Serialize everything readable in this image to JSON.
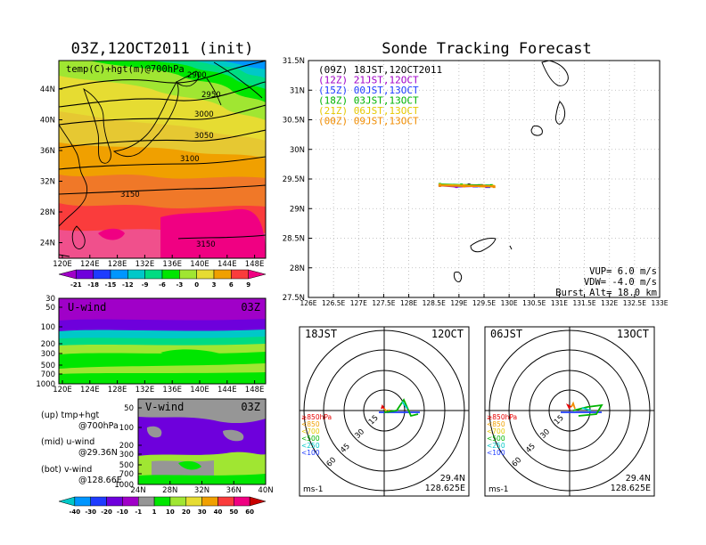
{
  "left_panel": {
    "title": "03Z,12OCT2011 (init)",
    "map_label": "temp(C)+hgt(m)@700hPa",
    "contours": [
      "2900",
      "2950",
      "3000",
      "3050",
      "3100",
      "3150",
      "3150"
    ],
    "lat_ticks": [
      "44N",
      "40N",
      "36N",
      "32N",
      "28N",
      "24N"
    ],
    "lon_ticks": [
      "120E",
      "124E",
      "128E",
      "132E",
      "136E",
      "140E",
      "144E",
      "148E"
    ],
    "colorbar_labels": [
      "-21",
      "-18",
      "-15",
      "-12",
      "-9",
      "-6",
      "-3",
      "0",
      "3",
      "6",
      "9"
    ],
    "colorbar_colors": [
      "#a000c8",
      "#6e00dc",
      "#1e3cff",
      "#0096ff",
      "#00c8c8",
      "#00dc82",
      "#00e600",
      "#a0e632",
      "#e6dc32",
      "#f0a000",
      "#fa3c3c",
      "#f00082"
    ]
  },
  "uwind_panel": {
    "label": "U-wind",
    "time": "03Z",
    "p_ticks": [
      "30",
      "50",
      "100",
      "200",
      "300",
      "500",
      "700",
      "1000"
    ],
    "lon_ticks": [
      "120E",
      "124E",
      "128E",
      "132E",
      "136E",
      "140E",
      "144E",
      "148E"
    ]
  },
  "vwind_panel": {
    "label": "V-wind",
    "time": "03Z",
    "p_ticks": [
      "50",
      "100",
      "200",
      "300",
      "500",
      "700",
      "1000"
    ],
    "lat_ticks": [
      "24N",
      "28N",
      "32N",
      "36N",
      "40N"
    ]
  },
  "notes": {
    "up_1": "(up) tmp+hgt",
    "up_2": "@700hPa",
    "mid_1": "(mid) u-wind",
    "mid_2": "@29.36N",
    "bot_1": "(bot) v-wind",
    "bot_2": "@128.66E"
  },
  "wind_colorbar": {
    "labels": [
      "-40",
      "-30",
      "-20",
      "-10",
      "-1",
      "1",
      "10",
      "20",
      "30",
      "40",
      "50",
      "60"
    ],
    "colors": [
      "#00c8c8",
      "#0096ff",
      "#1e3cff",
      "#6e00dc",
      "#a000c8",
      "#969696",
      "#00e600",
      "#a0e632",
      "#e6dc32",
      "#f0a000",
      "#fa3c3c",
      "#f00082",
      "#c80000"
    ]
  },
  "track_panel": {
    "title": "Sonde Tracking Forecast",
    "lat_ticks": [
      "31.5N",
      "31N",
      "30.5N",
      "30N",
      "29.5N",
      "29N",
      "28.5N",
      "28N",
      "27.5N"
    ],
    "lon_ticks": [
      "126E",
      "126.5E",
      "127E",
      "127.5E",
      "128E",
      "128.5E",
      "129E",
      "129.5E",
      "130E",
      "130.5E",
      "131E",
      "131.5E",
      "132E",
      "132.5E",
      "133E"
    ],
    "legend": [
      {
        "text": "(09Z) 18JST,12OCT2011",
        "color": "#000000"
      },
      {
        "text": "(12Z) 21JST,12OCT",
        "color": "#a000c8"
      },
      {
        "text": "(15Z) 00JST,13OCT",
        "color": "#1e3cff"
      },
      {
        "text": "(18Z) 03JST,13OCT",
        "color": "#00b400"
      },
      {
        "text": "(21Z) 06JST,13OCT",
        "color": "#e6c800"
      },
      {
        "text": "(00Z) 09JST,13OCT",
        "color": "#f08c00"
      }
    ],
    "vup": "VUP=  6.0  m/s",
    "vdw": "VDW= -4.0  m/s",
    "burst": "Burst Alt=  18.0  km"
  },
  "hodo_left": {
    "time": "18JST",
    "date": "12OCT",
    "rings": [
      "15",
      "30",
      "45",
      "60"
    ],
    "levels": [
      {
        "text": "≥850hPa",
        "color": "#e60000"
      },
      {
        "text": "<850",
        "color": "#f0a000"
      },
      {
        "text": "<700",
        "color": "#e6c800"
      },
      {
        "text": "<500",
        "color": "#00b400"
      },
      {
        "text": "<250",
        "color": "#00c8c8"
      },
      {
        "text": "<100",
        "color": "#1e3cff"
      }
    ],
    "unit": "ms-1",
    "lat": "29.4N",
    "lon": "128.625E"
  },
  "hodo_right": {
    "time": "06JST",
    "date": "13OCT",
    "rings": [
      "15",
      "30",
      "45",
      "60"
    ],
    "levels": [
      {
        "text": "≥850hPa",
        "color": "#e60000"
      },
      {
        "text": "<850",
        "color": "#f0a000"
      },
      {
        "text": "<700",
        "color": "#e6c800"
      },
      {
        "text": "<500",
        "color": "#00b400"
      },
      {
        "text": "<250",
        "color": "#00c8c8"
      },
      {
        "text": "<100",
        "color": "#1e3cff"
      }
    ],
    "unit": "ms-1",
    "lat": "29.4N",
    "lon": "128.625E"
  },
  "chart_data": [
    {
      "type": "line",
      "title": "Sonde Tracking Forecast",
      "xlabel": "",
      "ylabel": "",
      "xlim": [
        126,
        133
      ],
      "ylim": [
        27.5,
        31.5
      ],
      "series": [
        {
          "name": "(09Z) 18JST,12OCT2011",
          "color": "#000000",
          "x": [
            128.62,
            128.9,
            129.2,
            129.45
          ],
          "y": [
            29.4,
            29.39,
            29.4,
            29.39
          ]
        },
        {
          "name": "(12Z) 21JST,12OCT",
          "color": "#a000c8",
          "x": [
            128.62,
            128.95,
            129.3,
            129.55
          ],
          "y": [
            29.39,
            29.37,
            29.38,
            29.37
          ]
        },
        {
          "name": "(15Z) 00JST,13OCT",
          "color": "#1e3cff",
          "x": [
            128.62,
            129.0,
            129.35,
            129.6
          ],
          "y": [
            29.4,
            29.38,
            29.38,
            29.37
          ]
        },
        {
          "name": "(18Z) 03JST,13OCT",
          "color": "#00b400",
          "x": [
            128.62,
            129.05,
            129.4,
            129.65
          ],
          "y": [
            29.41,
            29.4,
            29.39,
            29.39
          ]
        },
        {
          "name": "(21Z) 06JST,13OCT",
          "color": "#e6c800",
          "x": [
            128.62,
            129.1,
            129.45,
            129.68
          ],
          "y": [
            29.4,
            29.39,
            29.38,
            29.38
          ]
        },
        {
          "name": "(00Z) 09JST,13OCT",
          "color": "#f08c00",
          "x": [
            128.62,
            129.1,
            129.5,
            129.7
          ],
          "y": [
            29.39,
            29.38,
            29.38,
            29.37
          ]
        }
      ]
    }
  ]
}
